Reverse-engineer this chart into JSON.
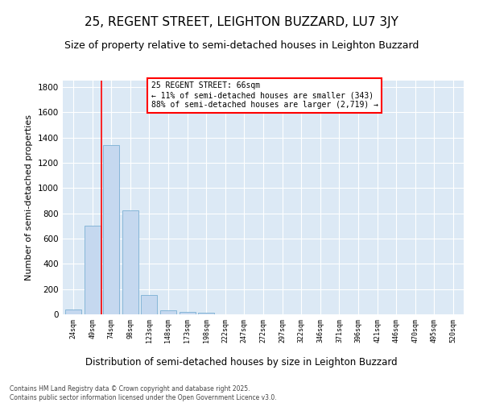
{
  "title": "25, REGENT STREET, LEIGHTON BUZZARD, LU7 3JY",
  "subtitle": "Size of property relative to semi-detached houses in Leighton Buzzard",
  "xlabel": "Distribution of semi-detached houses by size in Leighton Buzzard",
  "ylabel": "Number of semi-detached properties",
  "categories": [
    "24sqm",
    "49sqm",
    "74sqm",
    "98sqm",
    "123sqm",
    "148sqm",
    "173sqm",
    "198sqm",
    "222sqm",
    "247sqm",
    "272sqm",
    "297sqm",
    "322sqm",
    "346sqm",
    "371sqm",
    "396sqm",
    "421sqm",
    "446sqm",
    "470sqm",
    "495sqm",
    "520sqm"
  ],
  "values": [
    40,
    700,
    1340,
    820,
    150,
    35,
    22,
    10,
    0,
    0,
    0,
    0,
    0,
    0,
    0,
    0,
    0,
    0,
    0,
    0,
    0
  ],
  "bar_color": "#c5d8ef",
  "bar_edge_color": "#7bafd4",
  "vline_x": 1.5,
  "vline_color": "red",
  "annotation_title": "25 REGENT STREET: 66sqm",
  "annotation_line1": "← 11% of semi-detached houses are smaller (343)",
  "annotation_line2": "88% of semi-detached houses are larger (2,719) →",
  "annotation_box_edge": "red",
  "ylim": [
    0,
    1850
  ],
  "yticks": [
    0,
    200,
    400,
    600,
    800,
    1000,
    1200,
    1400,
    1600,
    1800
  ],
  "background_color": "#dce9f5",
  "footer_line1": "Contains HM Land Registry data © Crown copyright and database right 2025.",
  "footer_line2": "Contains public sector information licensed under the Open Government Licence v3.0.",
  "title_fontsize": 11,
  "subtitle_fontsize": 9,
  "xlabel_fontsize": 8.5,
  "ylabel_fontsize": 8
}
